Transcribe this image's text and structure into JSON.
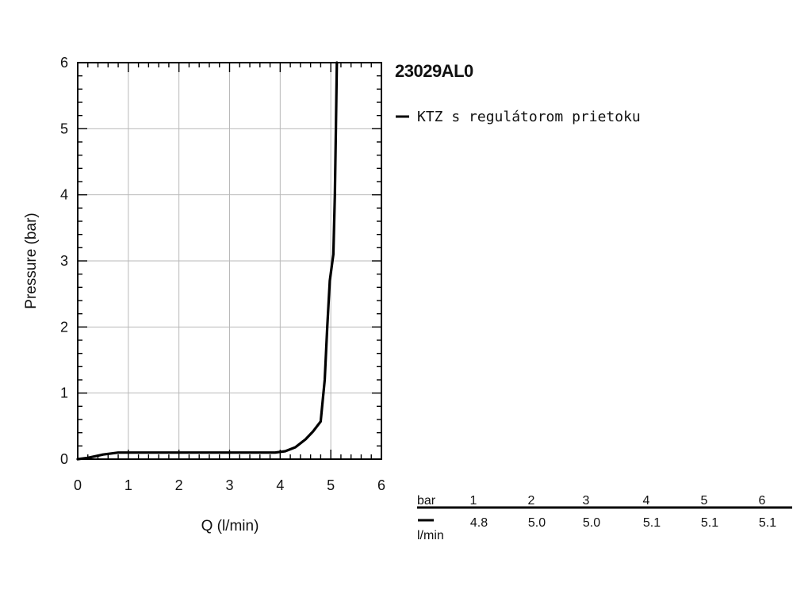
{
  "chart_data": {
    "type": "line",
    "title": "23029AL0",
    "xlabel": "Q (l/min)",
    "ylabel": "Pressure (bar)",
    "xlim": [
      0,
      6
    ],
    "ylim": [
      0,
      6
    ],
    "xticks": [
      "0",
      "1",
      "2",
      "3",
      "4",
      "5",
      "6"
    ],
    "yticks": [
      "0",
      "1",
      "2",
      "3",
      "4",
      "5",
      "6"
    ],
    "grid": true,
    "legend_position": "right of plot, top",
    "series": [
      {
        "name": "KTZ s regulátorom prietoku",
        "color": "#000000",
        "points": [
          [
            0.0,
            0.0
          ],
          [
            0.2,
            0.02
          ],
          [
            0.5,
            0.07
          ],
          [
            0.8,
            0.1
          ],
          [
            1.2,
            0.1
          ],
          [
            2.0,
            0.1
          ],
          [
            3.0,
            0.1
          ],
          [
            3.9,
            0.1
          ],
          [
            4.1,
            0.12
          ],
          [
            4.3,
            0.18
          ],
          [
            4.5,
            0.3
          ],
          [
            4.65,
            0.42
          ],
          [
            4.8,
            0.57
          ],
          [
            4.88,
            1.2
          ],
          [
            4.93,
            2.0
          ],
          [
            4.98,
            2.7
          ],
          [
            5.05,
            3.1
          ],
          [
            5.08,
            4.0
          ],
          [
            5.1,
            5.0
          ],
          [
            5.12,
            6.0
          ]
        ]
      }
    ]
  },
  "table": {
    "row_header": "bar",
    "unit_label": "l/min",
    "pressures": [
      "1",
      "2",
      "3",
      "4",
      "5",
      "6"
    ],
    "flows": [
      "4.8",
      "5.0",
      "5.0",
      "5.1",
      "5.1",
      "5.1"
    ]
  }
}
